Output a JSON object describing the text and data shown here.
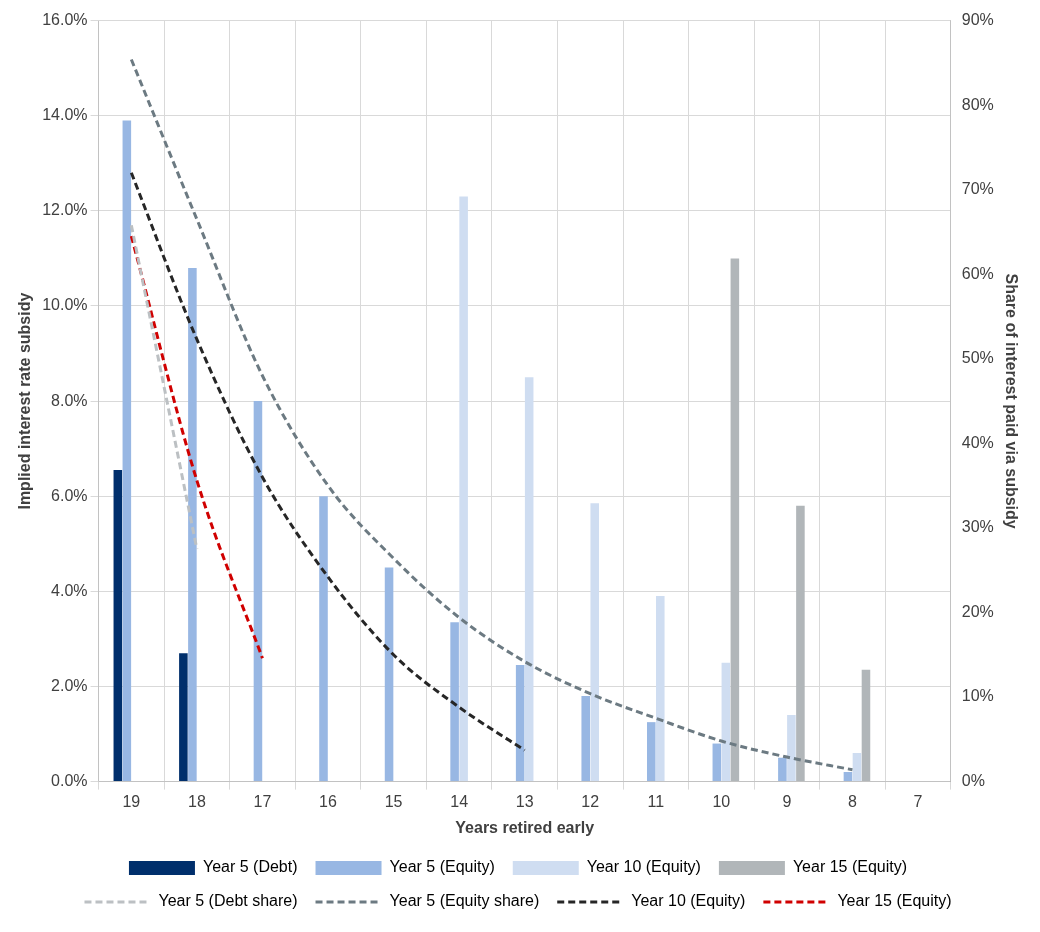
{
  "chart_data": {
    "type": "bar",
    "xlabel": "Years retired early",
    "ylabel": "Implied interest rate subsidy",
    "y2label": "Share of interest paid via subsidy",
    "categories": [
      "19",
      "18",
      "17",
      "16",
      "15",
      "14",
      "13",
      "12",
      "11",
      "10",
      "9",
      "8",
      "7"
    ],
    "ylim": [
      0,
      16
    ],
    "yticks": [
      {
        "value": 0,
        "label": "0.0%"
      },
      {
        "value": 2,
        "label": "2.0%"
      },
      {
        "value": 4,
        "label": "4.0%"
      },
      {
        "value": 6,
        "label": "6.0%"
      },
      {
        "value": 8,
        "label": "8.0%"
      },
      {
        "value": 10,
        "label": "10.0%"
      },
      {
        "value": 12,
        "label": "12.0%"
      },
      {
        "value": 14,
        "label": "14.0%"
      },
      {
        "value": 16,
        "label": "16.0%"
      }
    ],
    "y2lim": [
      0,
      90
    ],
    "y2ticks": [
      {
        "value": 0,
        "label": "0%"
      },
      {
        "value": 10,
        "label": "10%"
      },
      {
        "value": 20,
        "label": "20%"
      },
      {
        "value": 30,
        "label": "30%"
      },
      {
        "value": 40,
        "label": "40%"
      },
      {
        "value": 50,
        "label": "50%"
      },
      {
        "value": 60,
        "label": "60%"
      },
      {
        "value": 70,
        "label": "70%"
      },
      {
        "value": 80,
        "label": "80%"
      },
      {
        "value": 90,
        "label": "90%"
      }
    ],
    "grid": true,
    "legend": "bottom",
    "marker": "none",
    "series": [
      {
        "name": "Year 5 (Debt)",
        "color": "#002f6c",
        "values": [
          6.55,
          2.7,
          null,
          null,
          null,
          null,
          null,
          null,
          null,
          null,
          null,
          null,
          null
        ]
      },
      {
        "name": "Year 5 (Equity)",
        "color": "#98b7e3",
        "values": [
          13.9,
          10.8,
          8.0,
          6.0,
          4.5,
          3.35,
          2.45,
          1.8,
          1.25,
          0.8,
          0.5,
          0.2,
          null
        ]
      },
      {
        "name": "Year 10 (Equity)",
        "color": "#cfddf1",
        "values": [
          null,
          null,
          null,
          null,
          null,
          12.3,
          8.5,
          5.85,
          3.9,
          2.5,
          1.4,
          0.6,
          null
        ]
      },
      {
        "name": "Year 15 (Equity)",
        "color": "#b1b6b9",
        "values": [
          null,
          null,
          null,
          null,
          null,
          null,
          null,
          null,
          null,
          11.0,
          5.8,
          2.35,
          null
        ]
      },
      {
        "name": "Year 5 (Debt share)",
        "type": "line",
        "axis": "y2",
        "line_style": "dashed",
        "color": "#bcc0c3",
        "values": [
          65.8,
          27.5,
          null,
          null,
          null,
          null,
          null,
          null,
          null,
          null,
          null,
          null,
          null
        ]
      },
      {
        "name": "Year 5 (Equity share)",
        "type": "line",
        "axis": "y2",
        "line_style": "dashed",
        "color": "#6c7a82",
        "values": [
          85.4,
          66.5,
          48,
          35,
          26.4,
          19.4,
          14.2,
          10.4,
          7.5,
          4.8,
          2.9,
          1.4,
          null
        ]
      },
      {
        "name": "Year 10 (Equity)",
        "type": "line",
        "axis": "y2",
        "line_style": "dashed",
        "color": "#262626",
        "values": [
          72,
          52.3,
          36,
          24.2,
          15,
          8.8,
          3.7,
          null,
          null,
          null,
          null,
          null,
          null
        ]
      },
      {
        "name": "Year 15 (Equity)",
        "type": "line",
        "axis": "y2",
        "line_style": "dashed",
        "color": "#d00000",
        "values": [
          64.5,
          35.6,
          14.6,
          null,
          null,
          null,
          null,
          null,
          null,
          null,
          null,
          null,
          null
        ]
      }
    ]
  }
}
